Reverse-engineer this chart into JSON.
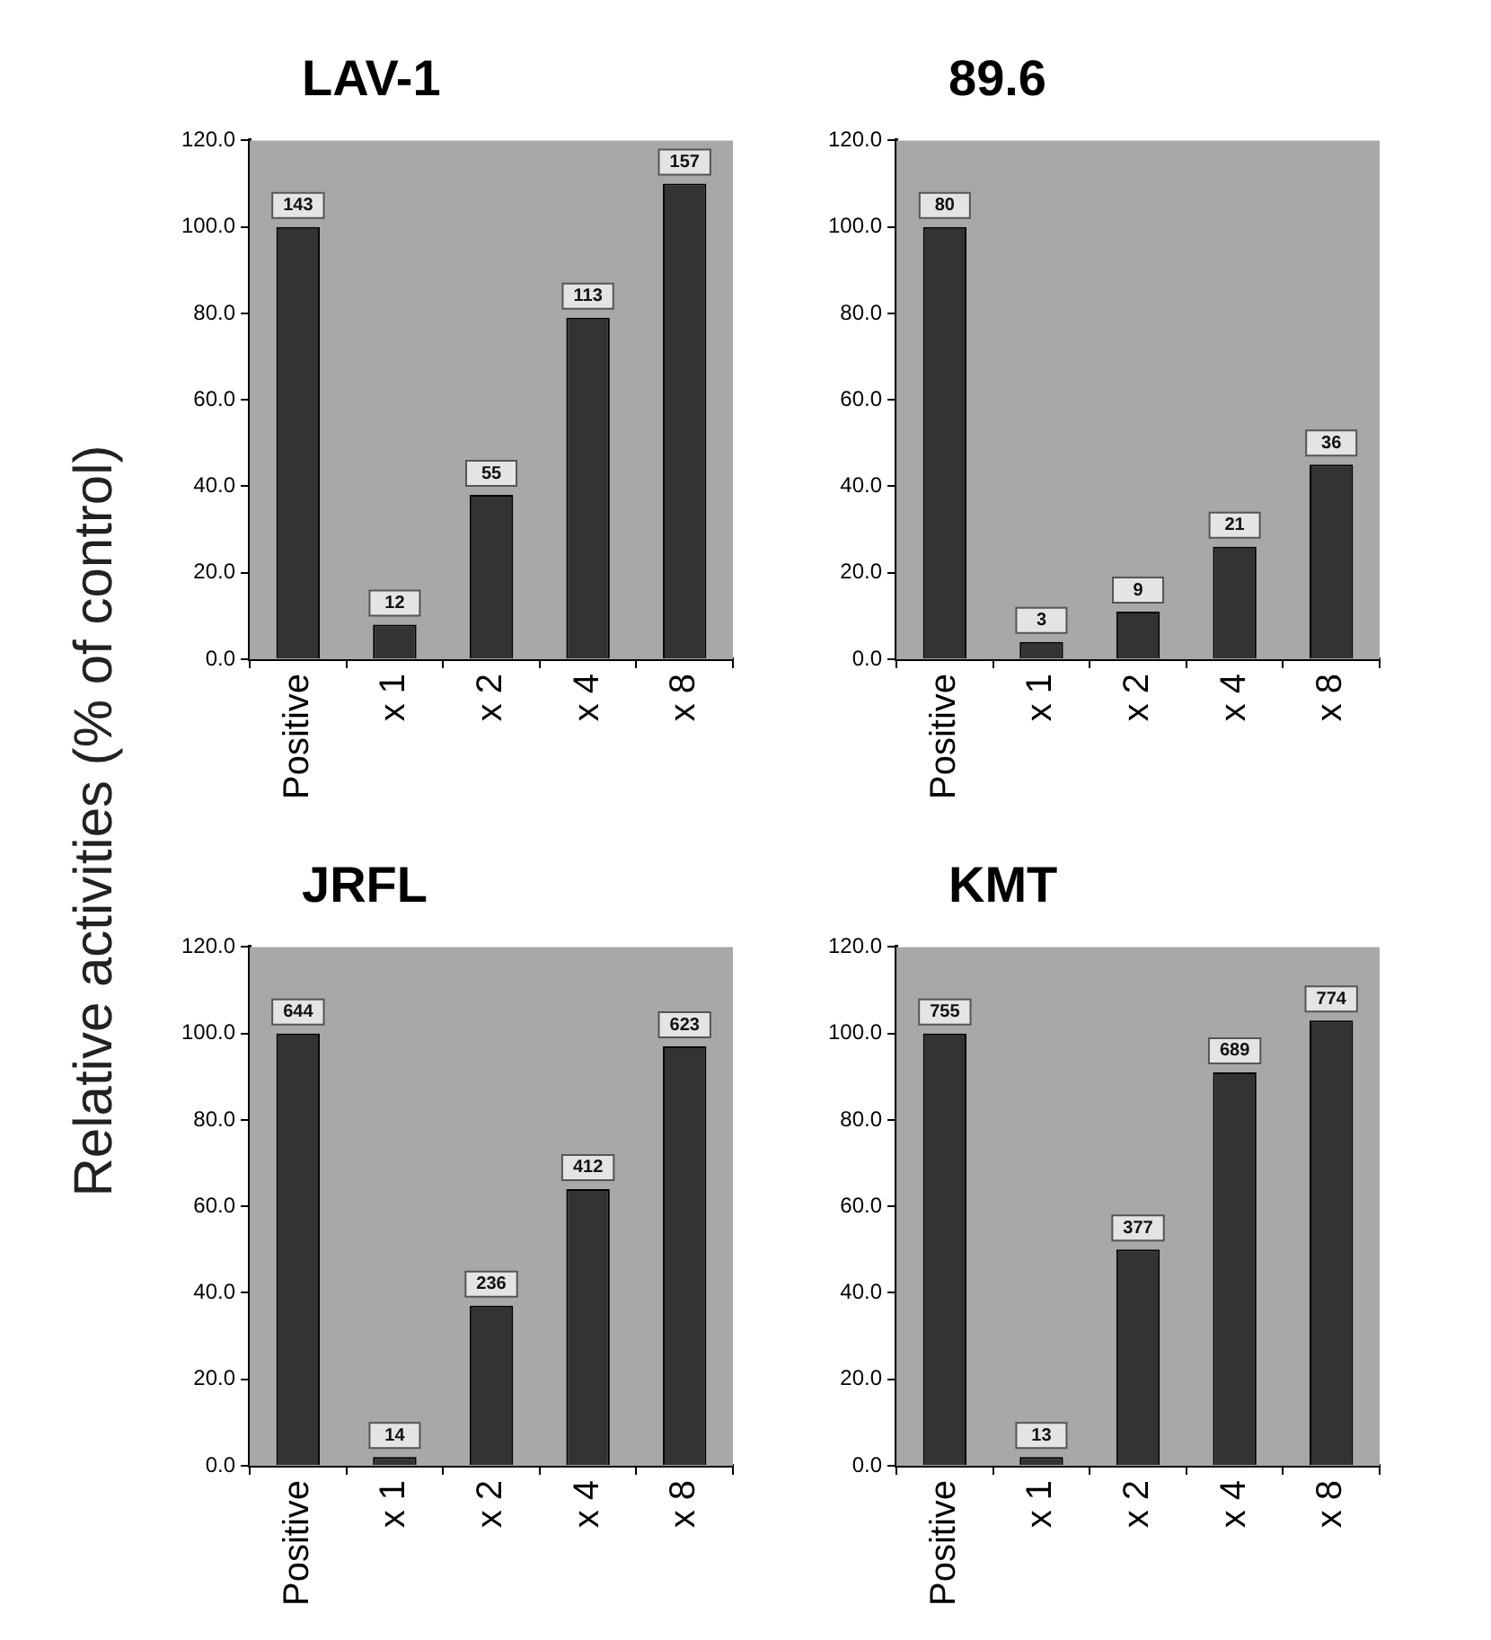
{
  "chart_data": [
    {
      "type": "bar",
      "title": "LAV-1",
      "ylabel": "Relative activities (% of control)",
      "categories": [
        "Positive",
        "x 1",
        "x 2",
        "x 4",
        "x 8"
      ],
      "values": [
        100,
        8,
        38,
        79,
        110
      ],
      "color": "#333333",
      "ylim": [
        0,
        120
      ],
      "yticks": [
        {
          "value": 0,
          "label": "0.0"
        },
        {
          "value": 20,
          "label": "20.0"
        },
        {
          "value": 40,
          "label": "40.0"
        },
        {
          "value": 60,
          "label": "60.0"
        },
        {
          "value": 80,
          "label": "80.0"
        },
        {
          "value": 100,
          "label": "100.0"
        },
        {
          "value": 120,
          "label": "120.0"
        }
      ],
      "grid": false,
      "legend": false,
      "annotations": [
        {
          "text": "143",
          "x": "Positive",
          "y": 100
        },
        {
          "text": "12",
          "x": "x 1",
          "y": 8
        },
        {
          "text": "55",
          "x": "x 2",
          "y": 38
        },
        {
          "text": "113",
          "x": "x 4",
          "y": 79
        },
        {
          "text": "157",
          "x": "x 8",
          "y": 110
        }
      ]
    },
    {
      "type": "bar",
      "title": "89.6",
      "categories": [
        "Positive",
        "x 1",
        "x 2",
        "x 4",
        "x 8"
      ],
      "values": [
        100,
        4,
        11,
        26,
        45
      ],
      "color": "#333333",
      "ylim": [
        0,
        120
      ],
      "yticks": [
        {
          "value": 0,
          "label": "0.0"
        },
        {
          "value": 20,
          "label": "20.0"
        },
        {
          "value": 40,
          "label": "40.0"
        },
        {
          "value": 60,
          "label": "60.0"
        },
        {
          "value": 80,
          "label": "80.0"
        },
        {
          "value": 100,
          "label": "100.0"
        },
        {
          "value": 120,
          "label": "120.0"
        }
      ],
      "grid": false,
      "legend": false,
      "annotations": [
        {
          "text": "80",
          "x": "Positive",
          "y": 100
        },
        {
          "text": "3",
          "x": "x 1",
          "y": 4
        },
        {
          "text": "9",
          "x": "x 2",
          "y": 11
        },
        {
          "text": "21",
          "x": "x 4",
          "y": 26
        },
        {
          "text": "36",
          "x": "x 8",
          "y": 45
        }
      ]
    },
    {
      "type": "bar",
      "title": "JRFL",
      "categories": [
        "Positive",
        "x 1",
        "x 2",
        "x 4",
        "x 8"
      ],
      "values": [
        100,
        2,
        37,
        64,
        97
      ],
      "color": "#333333",
      "ylim": [
        0,
        120
      ],
      "yticks": [
        {
          "value": 0,
          "label": "0.0"
        },
        {
          "value": 20,
          "label": "20.0"
        },
        {
          "value": 40,
          "label": "40.0"
        },
        {
          "value": 60,
          "label": "60.0"
        },
        {
          "value": 80,
          "label": "80.0"
        },
        {
          "value": 100,
          "label": "100.0"
        },
        {
          "value": 120,
          "label": "120.0"
        }
      ],
      "grid": false,
      "legend": false,
      "annotations": [
        {
          "text": "644",
          "x": "Positive",
          "y": 100
        },
        {
          "text": "14",
          "x": "x 1",
          "y": 2
        },
        {
          "text": "236",
          "x": "x 2",
          "y": 37
        },
        {
          "text": "412",
          "x": "x 4",
          "y": 64
        },
        {
          "text": "623",
          "x": "x 8",
          "y": 97
        }
      ]
    },
    {
      "type": "bar",
      "title": "KMT",
      "categories": [
        "Positive",
        "x 1",
        "x 2",
        "x 4",
        "x 8"
      ],
      "values": [
        100,
        2,
        50,
        91,
        103
      ],
      "color": "#333333",
      "ylim": [
        0,
        120
      ],
      "yticks": [
        {
          "value": 0,
          "label": "0.0"
        },
        {
          "value": 20,
          "label": "20.0"
        },
        {
          "value": 40,
          "label": "40.0"
        },
        {
          "value": 60,
          "label": "60.0"
        },
        {
          "value": 80,
          "label": "80.0"
        },
        {
          "value": 100,
          "label": "100.0"
        },
        {
          "value": 120,
          "label": "120.0"
        }
      ],
      "grid": false,
      "legend": false,
      "annotations": [
        {
          "text": "755",
          "x": "Positive",
          "y": 100
        },
        {
          "text": "13",
          "x": "x 1",
          "y": 2
        },
        {
          "text": "377",
          "x": "x 2",
          "y": 50
        },
        {
          "text": "689",
          "x": "x 4",
          "y": 91
        },
        {
          "text": "774",
          "x": "x 8",
          "y": 103
        }
      ]
    }
  ]
}
